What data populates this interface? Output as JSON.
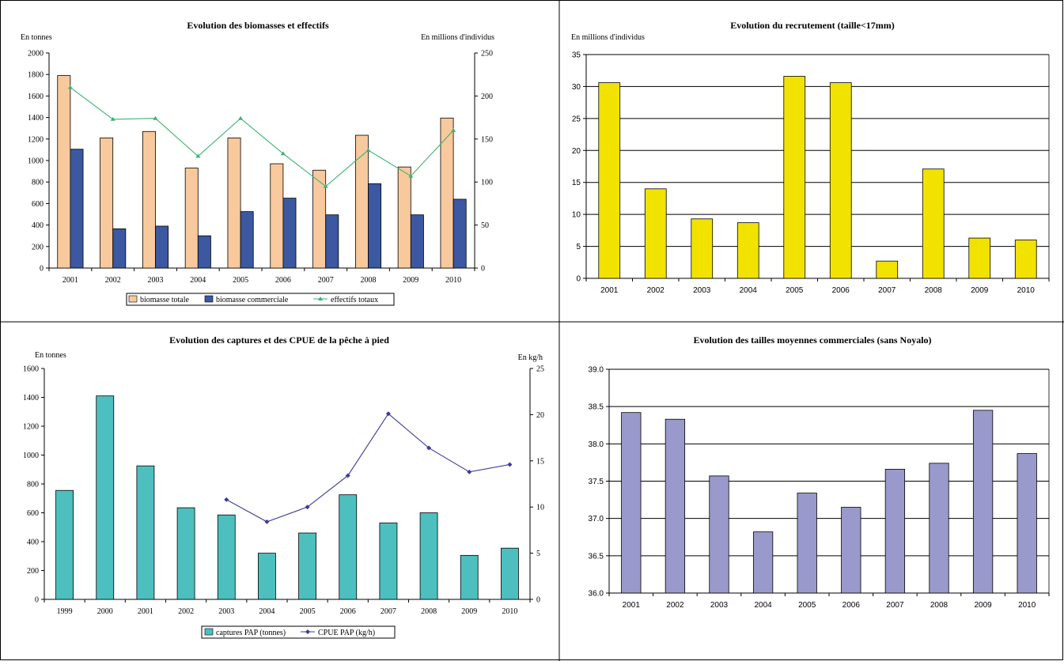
{
  "chart_data": [
    {
      "id": "tl",
      "type": "bar",
      "title": "Evolution  des biomasses et effectifs",
      "left_unit": "En tonnes",
      "right_unit": "En millions d'individus",
      "categories": [
        "2001",
        "2002",
        "2003",
        "2004",
        "2005",
        "2006",
        "2007",
        "2008",
        "2009",
        "2010"
      ],
      "ylim": [
        0,
        2000
      ],
      "yticks": [
        0,
        200,
        400,
        600,
        800,
        1000,
        1200,
        1400,
        1600,
        1800,
        2000
      ],
      "y2lim": [
        0,
        250
      ],
      "y2ticks": [
        0,
        50,
        100,
        150,
        200,
        250
      ],
      "series": [
        {
          "name": "biomasse totale",
          "kind": "bar",
          "axis": "left",
          "color": "#F8C99C",
          "values": [
            1790,
            1210,
            1270,
            930,
            1210,
            970,
            910,
            1235,
            940,
            1395
          ]
        },
        {
          "name": "biomasse commerciale",
          "kind": "bar",
          "axis": "left",
          "color": "#3B58A1",
          "values": [
            1105,
            365,
            390,
            300,
            525,
            650,
            495,
            785,
            495,
            640
          ]
        },
        {
          "name": "effectifs totaux",
          "kind": "line",
          "axis": "right",
          "color": "#3CB371",
          "values": [
            210,
            173,
            174,
            130,
            174,
            133,
            95,
            137,
            107,
            160
          ]
        }
      ],
      "legend_position": "bottom"
    },
    {
      "id": "tr",
      "type": "bar",
      "title": "Evolution du recrutement (taille<17mm)",
      "left_unit": "En millions d'individus",
      "categories": [
        "2001",
        "2002",
        "2003",
        "2004",
        "2005",
        "2006",
        "2007",
        "2008",
        "2009",
        "2010"
      ],
      "ylim": [
        0,
        35
      ],
      "yticks": [
        0,
        5,
        10,
        15,
        20,
        25,
        30,
        35
      ],
      "grid": true,
      "series": [
        {
          "kind": "bar",
          "axis": "left",
          "color": "#F2E200",
          "values": [
            30.6,
            14.0,
            9.3,
            8.7,
            31.6,
            30.6,
            2.7,
            17.1,
            6.3,
            6.0
          ]
        }
      ]
    },
    {
      "id": "bl",
      "type": "bar",
      "title": "Evolution des captures et des CPUE de la pêche à pied",
      "left_unit": "En tonnes",
      "right_unit": "En kg/h",
      "categories": [
        "1999",
        "2000",
        "2001",
        "2002",
        "2003",
        "2004",
        "2005",
        "2006",
        "2007",
        "2008",
        "2009",
        "2010"
      ],
      "ylim": [
        0,
        1600
      ],
      "yticks": [
        0,
        200,
        400,
        600,
        800,
        1000,
        1200,
        1400,
        1600
      ],
      "y2lim": [
        0,
        25
      ],
      "y2ticks": [
        0,
        5,
        10,
        15,
        20,
        25
      ],
      "series": [
        {
          "name": "captures PAP (tonnes)",
          "kind": "bar",
          "axis": "left",
          "color": "#4DBFBF",
          "values": [
            755,
            1410,
            925,
            635,
            585,
            320,
            460,
            725,
            530,
            600,
            305,
            355
          ]
        },
        {
          "name": "CPUE PAP (kg/h)",
          "kind": "line",
          "axis": "right",
          "color": "#3B3B9A",
          "values": [
            null,
            null,
            null,
            null,
            10.8,
            8.4,
            10.0,
            13.4,
            20.1,
            16.4,
            13.8,
            14.6
          ]
        }
      ],
      "legend_position": "bottom"
    },
    {
      "id": "br",
      "type": "bar",
      "title": "Evolution des tailles moyennes commerciales (sans Noyalo)",
      "categories": [
        "2001",
        "2002",
        "2003",
        "2004",
        "2005",
        "2006",
        "2007",
        "2008",
        "2009",
        "2010"
      ],
      "ylim": [
        36.0,
        39.0
      ],
      "yticks": [
        "36.0",
        "36.5",
        "37.0",
        "37.5",
        "38.0",
        "38.5",
        "39.0"
      ],
      "grid": true,
      "series": [
        {
          "kind": "bar",
          "axis": "left",
          "color": "#9999CC",
          "values": [
            38.42,
            38.33,
            37.57,
            36.82,
            37.34,
            37.15,
            37.66,
            37.74,
            38.45,
            37.87
          ]
        }
      ]
    }
  ]
}
